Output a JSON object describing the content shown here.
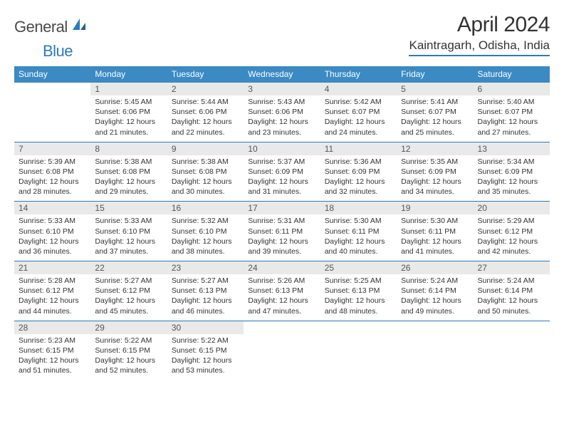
{
  "brand": {
    "general": "General",
    "blue": "Blue"
  },
  "title": "April 2024",
  "location": "Kaintragarh, Odisha, India",
  "colors": {
    "header_bg": "#3b8ac4",
    "rule": "#2a7bbf",
    "daynum_bg": "#e9e9e9",
    "text": "#333333",
    "logo_gray": "#4a4a4a",
    "logo_blue": "#2a7bbf"
  },
  "dayNames": [
    "Sunday",
    "Monday",
    "Tuesday",
    "Wednesday",
    "Thursday",
    "Friday",
    "Saturday"
  ],
  "weeks": [
    [
      {
        "day": null
      },
      {
        "day": 1,
        "sunrise": "5:45 AM",
        "sunset": "6:06 PM",
        "daylight": "12 hours and 21 minutes."
      },
      {
        "day": 2,
        "sunrise": "5:44 AM",
        "sunset": "6:06 PM",
        "daylight": "12 hours and 22 minutes."
      },
      {
        "day": 3,
        "sunrise": "5:43 AM",
        "sunset": "6:06 PM",
        "daylight": "12 hours and 23 minutes."
      },
      {
        "day": 4,
        "sunrise": "5:42 AM",
        "sunset": "6:07 PM",
        "daylight": "12 hours and 24 minutes."
      },
      {
        "day": 5,
        "sunrise": "5:41 AM",
        "sunset": "6:07 PM",
        "daylight": "12 hours and 25 minutes."
      },
      {
        "day": 6,
        "sunrise": "5:40 AM",
        "sunset": "6:07 PM",
        "daylight": "12 hours and 27 minutes."
      }
    ],
    [
      {
        "day": 7,
        "sunrise": "5:39 AM",
        "sunset": "6:08 PM",
        "daylight": "12 hours and 28 minutes."
      },
      {
        "day": 8,
        "sunrise": "5:38 AM",
        "sunset": "6:08 PM",
        "daylight": "12 hours and 29 minutes."
      },
      {
        "day": 9,
        "sunrise": "5:38 AM",
        "sunset": "6:08 PM",
        "daylight": "12 hours and 30 minutes."
      },
      {
        "day": 10,
        "sunrise": "5:37 AM",
        "sunset": "6:09 PM",
        "daylight": "12 hours and 31 minutes."
      },
      {
        "day": 11,
        "sunrise": "5:36 AM",
        "sunset": "6:09 PM",
        "daylight": "12 hours and 32 minutes."
      },
      {
        "day": 12,
        "sunrise": "5:35 AM",
        "sunset": "6:09 PM",
        "daylight": "12 hours and 34 minutes."
      },
      {
        "day": 13,
        "sunrise": "5:34 AM",
        "sunset": "6:09 PM",
        "daylight": "12 hours and 35 minutes."
      }
    ],
    [
      {
        "day": 14,
        "sunrise": "5:33 AM",
        "sunset": "6:10 PM",
        "daylight": "12 hours and 36 minutes."
      },
      {
        "day": 15,
        "sunrise": "5:33 AM",
        "sunset": "6:10 PM",
        "daylight": "12 hours and 37 minutes."
      },
      {
        "day": 16,
        "sunrise": "5:32 AM",
        "sunset": "6:10 PM",
        "daylight": "12 hours and 38 minutes."
      },
      {
        "day": 17,
        "sunrise": "5:31 AM",
        "sunset": "6:11 PM",
        "daylight": "12 hours and 39 minutes."
      },
      {
        "day": 18,
        "sunrise": "5:30 AM",
        "sunset": "6:11 PM",
        "daylight": "12 hours and 40 minutes."
      },
      {
        "day": 19,
        "sunrise": "5:30 AM",
        "sunset": "6:11 PM",
        "daylight": "12 hours and 41 minutes."
      },
      {
        "day": 20,
        "sunrise": "5:29 AM",
        "sunset": "6:12 PM",
        "daylight": "12 hours and 42 minutes."
      }
    ],
    [
      {
        "day": 21,
        "sunrise": "5:28 AM",
        "sunset": "6:12 PM",
        "daylight": "12 hours and 44 minutes."
      },
      {
        "day": 22,
        "sunrise": "5:27 AM",
        "sunset": "6:12 PM",
        "daylight": "12 hours and 45 minutes."
      },
      {
        "day": 23,
        "sunrise": "5:27 AM",
        "sunset": "6:13 PM",
        "daylight": "12 hours and 46 minutes."
      },
      {
        "day": 24,
        "sunrise": "5:26 AM",
        "sunset": "6:13 PM",
        "daylight": "12 hours and 47 minutes."
      },
      {
        "day": 25,
        "sunrise": "5:25 AM",
        "sunset": "6:13 PM",
        "daylight": "12 hours and 48 minutes."
      },
      {
        "day": 26,
        "sunrise": "5:24 AM",
        "sunset": "6:14 PM",
        "daylight": "12 hours and 49 minutes."
      },
      {
        "day": 27,
        "sunrise": "5:24 AM",
        "sunset": "6:14 PM",
        "daylight": "12 hours and 50 minutes."
      }
    ],
    [
      {
        "day": 28,
        "sunrise": "5:23 AM",
        "sunset": "6:15 PM",
        "daylight": "12 hours and 51 minutes."
      },
      {
        "day": 29,
        "sunrise": "5:22 AM",
        "sunset": "6:15 PM",
        "daylight": "12 hours and 52 minutes."
      },
      {
        "day": 30,
        "sunrise": "5:22 AM",
        "sunset": "6:15 PM",
        "daylight": "12 hours and 53 minutes."
      },
      {
        "day": null
      },
      {
        "day": null
      },
      {
        "day": null
      },
      {
        "day": null
      }
    ]
  ],
  "labels": {
    "sunrise": "Sunrise:",
    "sunset": "Sunset:",
    "daylight": "Daylight:"
  }
}
